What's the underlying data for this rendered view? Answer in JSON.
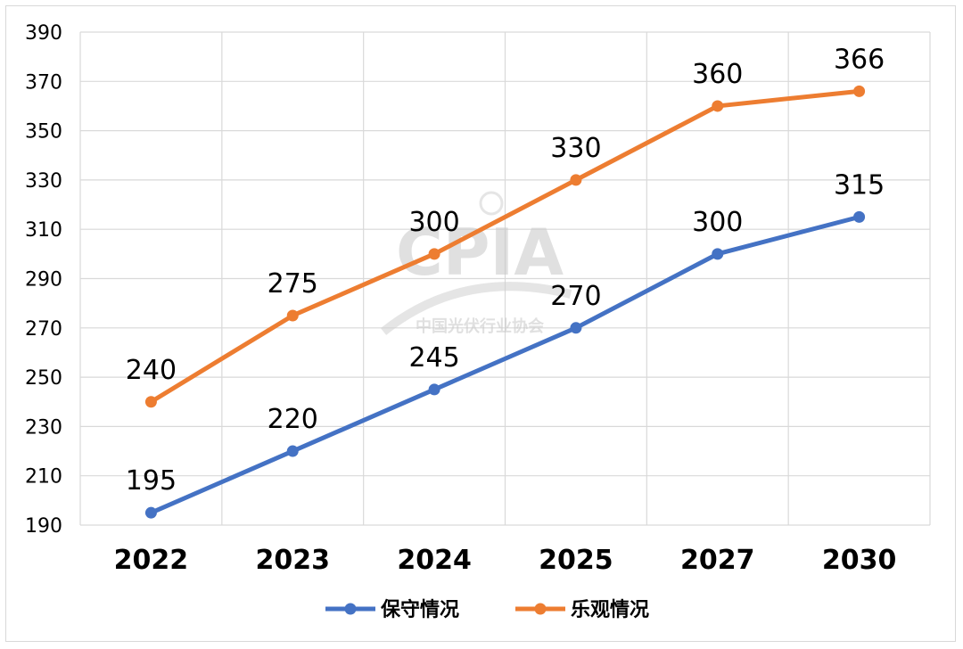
{
  "chart_data": {
    "type": "line",
    "categories": [
      "2022",
      "2023",
      "2024",
      "2025",
      "2027",
      "2030"
    ],
    "series": [
      {
        "name": "保守情况",
        "values": [
          195,
          220,
          245,
          270,
          300,
          315
        ],
        "color": "#4472c4"
      },
      {
        "name": "乐观情况",
        "values": [
          240,
          275,
          300,
          330,
          360,
          366
        ],
        "color": "#ed7d31"
      }
    ],
    "ylim": [
      190,
      390
    ],
    "yticks": [
      190,
      210,
      230,
      250,
      270,
      290,
      310,
      330,
      350,
      370,
      390
    ],
    "grid": true,
    "legend_position": "bottom",
    "title": "",
    "xlabel": "",
    "ylabel": ""
  },
  "watermark": {
    "logo": "CPIA",
    "subtitle": "中国光伏行业协会"
  }
}
